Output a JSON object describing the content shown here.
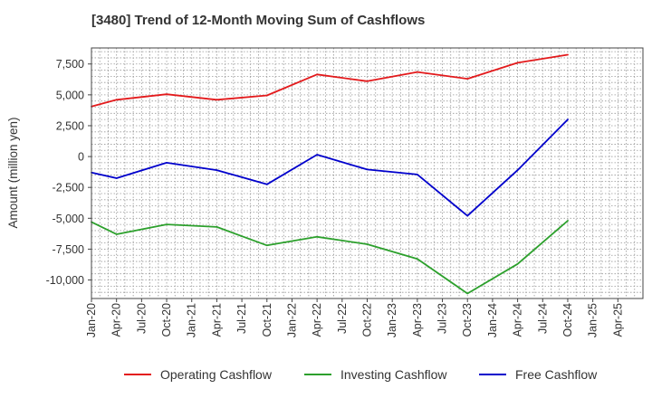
{
  "chart_data": {
    "type": "line",
    "title": "[3480]  Trend of 12-Month Moving Sum of Cashflows",
    "xlabel": "",
    "ylabel": "Amount (million yen)",
    "ylim": [
      -11500,
      8800
    ],
    "yticks": [
      7500,
      5000,
      2500,
      0,
      -2500,
      -5000,
      -7500,
      -10000
    ],
    "ytick_labels": [
      "7,500",
      "5,000",
      "2,500",
      "0",
      "-2,500",
      "-5,000",
      "-7,500",
      "-10,000"
    ],
    "x_ticks": [
      "Jan-20",
      "Apr-20",
      "Jul-20",
      "Oct-20",
      "Jan-21",
      "Apr-21",
      "Jul-21",
      "Oct-21",
      "Jan-22",
      "Apr-22",
      "Jul-22",
      "Oct-22",
      "Jan-23",
      "Apr-23",
      "Jul-23",
      "Oct-23",
      "Jan-24",
      "Apr-24",
      "Jul-24",
      "Oct-24",
      "Jan-25",
      "Apr-25"
    ],
    "grid": true,
    "legend_position": "bottom",
    "series": [
      {
        "name": "Operating Cashflow",
        "color": "#e31a1c",
        "points": [
          {
            "x": "Jan-20",
            "y": 4050
          },
          {
            "x": "Apr-20",
            "y": 4600
          },
          {
            "x": "Oct-20",
            "y": 5050
          },
          {
            "x": "Apr-21",
            "y": 4600
          },
          {
            "x": "Oct-21",
            "y": 4950
          },
          {
            "x": "Apr-22",
            "y": 6650
          },
          {
            "x": "Oct-22",
            "y": 6100
          },
          {
            "x": "Apr-23",
            "y": 6850
          },
          {
            "x": "Oct-23",
            "y": 6300
          },
          {
            "x": "Apr-24",
            "y": 7600
          },
          {
            "x": "Oct-24",
            "y": 8250
          }
        ]
      },
      {
        "name": "Investing Cashflow",
        "color": "#2ca02c",
        "points": [
          {
            "x": "Jan-20",
            "y": -5300
          },
          {
            "x": "Apr-20",
            "y": -6300
          },
          {
            "x": "Oct-20",
            "y": -5500
          },
          {
            "x": "Apr-21",
            "y": -5700
          },
          {
            "x": "Oct-21",
            "y": -7200
          },
          {
            "x": "Apr-22",
            "y": -6500
          },
          {
            "x": "Oct-22",
            "y": -7100
          },
          {
            "x": "Apr-23",
            "y": -8300
          },
          {
            "x": "Oct-23",
            "y": -11100
          },
          {
            "x": "Apr-24",
            "y": -8700
          },
          {
            "x": "Oct-24",
            "y": -5200
          }
        ]
      },
      {
        "name": "Free Cashflow",
        "color": "#0000cc",
        "points": [
          {
            "x": "Jan-20",
            "y": -1300
          },
          {
            "x": "Apr-20",
            "y": -1750
          },
          {
            "x": "Oct-20",
            "y": -500
          },
          {
            "x": "Apr-21",
            "y": -1100
          },
          {
            "x": "Oct-21",
            "y": -2250
          },
          {
            "x": "Apr-22",
            "y": 150
          },
          {
            "x": "Oct-22",
            "y": -1050
          },
          {
            "x": "Apr-23",
            "y": -1450
          },
          {
            "x": "Oct-23",
            "y": -4800
          },
          {
            "x": "Apr-24",
            "y": -1100
          },
          {
            "x": "Oct-24",
            "y": 3000
          }
        ]
      }
    ]
  }
}
